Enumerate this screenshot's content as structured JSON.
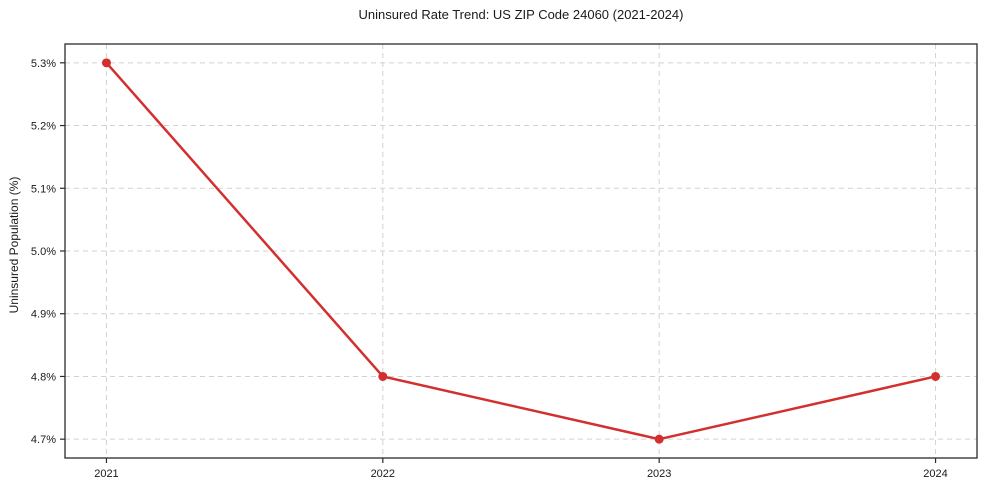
{
  "chart_data": {
    "type": "line",
    "title": "Uninsured Rate Trend: US ZIP Code 24060 (2021-2024)",
    "xlabel": "",
    "ylabel": "Uninsured Population (%)",
    "x": [
      2021,
      2022,
      2023,
      2024
    ],
    "values": [
      5.3,
      4.8,
      4.7,
      4.8
    ],
    "xtick_labels": [
      "2021",
      "2022",
      "2023",
      "2024"
    ],
    "yticks": [
      4.7,
      4.8,
      4.9,
      5.0,
      5.1,
      5.2,
      5.3
    ],
    "ytick_labels": [
      "4.7%",
      "4.8%",
      "4.9%",
      "5.0%",
      "5.1%",
      "5.2%",
      "5.3%"
    ],
    "xlim": [
      2020.85,
      2024.15
    ],
    "ylim": [
      4.67,
      5.33
    ],
    "grid": true,
    "grid_style": "dashed",
    "legend": false,
    "marker": "circle",
    "colors": {
      "line": "#d32f2f",
      "marker": "#d32f2f",
      "grid": "#d2d2d2",
      "spine": "#2b2b2b",
      "tick": "#2b2b2b",
      "text": "#1a1a1a",
      "background": "#ffffff"
    }
  }
}
